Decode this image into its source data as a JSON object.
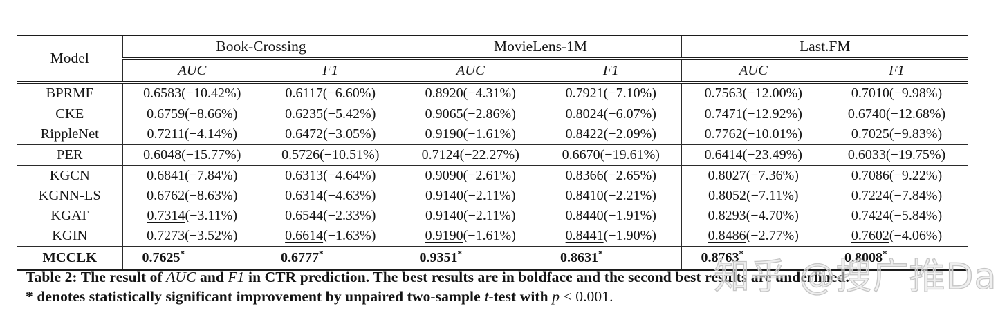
{
  "table": {
    "model_header": "Model",
    "star_symbol": "*",
    "groups": [
      {
        "label": "Book-Crossing",
        "metrics": [
          "AUC",
          "F1"
        ]
      },
      {
        "label": "MovieLens-1M",
        "metrics": [
          "AUC",
          "F1"
        ]
      },
      {
        "label": "Last.FM",
        "metrics": [
          "AUC",
          "F1"
        ]
      }
    ],
    "rows": [
      {
        "model": "BPRMF",
        "rule_below": true,
        "cells": [
          {
            "v": "0.6583",
            "d": "(−10.42%)"
          },
          {
            "v": "0.6117",
            "d": "(−6.60%)"
          },
          {
            "v": "0.8920",
            "d": "(−4.31%)"
          },
          {
            "v": "0.7921",
            "d": "(−7.10%)"
          },
          {
            "v": "0.7563",
            "d": "(−12.00%)"
          },
          {
            "v": "0.7010",
            "d": "(−9.98%)"
          }
        ]
      },
      {
        "model": "CKE",
        "rule_below": false,
        "cells": [
          {
            "v": "0.6759",
            "d": "(−8.66%)"
          },
          {
            "v": "0.6235",
            "d": "(−5.42%)"
          },
          {
            "v": "0.9065",
            "d": "(−2.86%)"
          },
          {
            "v": "0.8024",
            "d": "(−6.07%)"
          },
          {
            "v": "0.7471",
            "d": "(−12.92%)"
          },
          {
            "v": "0.6740",
            "d": "(−12.68%)"
          }
        ]
      },
      {
        "model": "RippleNet",
        "rule_below": true,
        "cells": [
          {
            "v": "0.7211",
            "d": "(−4.14%)"
          },
          {
            "v": "0.6472",
            "d": "(−3.05%)"
          },
          {
            "v": "0.9190",
            "d": "(−1.61%)"
          },
          {
            "v": "0.8422",
            "d": "(−2.09%)"
          },
          {
            "v": "0.7762",
            "d": "(−10.01%)"
          },
          {
            "v": "0.7025",
            "d": "(−9.83%)"
          }
        ]
      },
      {
        "model": "PER",
        "rule_below": true,
        "cells": [
          {
            "v": "0.6048",
            "d": "(−15.77%)"
          },
          {
            "v": "0.5726",
            "d": "(−10.51%)"
          },
          {
            "v": "0.7124",
            "d": "(−22.27%)"
          },
          {
            "v": "0.6670",
            "d": "(−19.61%)"
          },
          {
            "v": "0.6414",
            "d": "(−23.49%)"
          },
          {
            "v": "0.6033",
            "d": "(−19.75%)"
          }
        ]
      },
      {
        "model": "KGCN",
        "rule_below": false,
        "cells": [
          {
            "v": "0.6841",
            "d": "(−7.84%)"
          },
          {
            "v": "0.6313",
            "d": "(−4.64%)"
          },
          {
            "v": "0.9090",
            "d": "(−2.61%)"
          },
          {
            "v": "0.8366",
            "d": "(−2.65%)"
          },
          {
            "v": "0.8027",
            "d": "(−7.36%)"
          },
          {
            "v": "0.7086",
            "d": "(−9.22%)"
          }
        ]
      },
      {
        "model": "KGNN-LS",
        "rule_below": false,
        "cells": [
          {
            "v": "0.6762",
            "d": "(−8.63%)"
          },
          {
            "v": "0.6314",
            "d": "(−4.63%)"
          },
          {
            "v": "0.9140",
            "d": "(−2.11%)"
          },
          {
            "v": "0.8410",
            "d": "(−2.21%)"
          },
          {
            "v": "0.8052",
            "d": "(−7.11%)"
          },
          {
            "v": "0.7224",
            "d": "(−7.84%)"
          }
        ]
      },
      {
        "model": "KGAT",
        "rule_below": false,
        "cells": [
          {
            "v": "0.7314",
            "d": "(−3.11%)",
            "u": true
          },
          {
            "v": "0.6544",
            "d": "(−2.33%)"
          },
          {
            "v": "0.9140",
            "d": "(−2.11%)"
          },
          {
            "v": "0.8440",
            "d": "(−1.91%)"
          },
          {
            "v": "0.8293",
            "d": "(−4.70%)"
          },
          {
            "v": "0.7424",
            "d": "(−5.84%)"
          }
        ]
      },
      {
        "model": "KGIN",
        "rule_below": true,
        "cells": [
          {
            "v": "0.7273",
            "d": "(−3.52%)"
          },
          {
            "v": "0.6614",
            "d": "(−1.63%)",
            "u": true
          },
          {
            "v": "0.9190",
            "d": "(−1.61%)",
            "u": true
          },
          {
            "v": "0.8441",
            "d": "(−1.90%)",
            "u": true
          },
          {
            "v": "0.8486",
            "d": "(−2.77%)",
            "u": true
          },
          {
            "v": "0.7602",
            "d": "(−4.06%)",
            "u": true
          }
        ]
      },
      {
        "model": "MCCLK",
        "bold": true,
        "rule_below": false,
        "cells": [
          {
            "v": "0.7625",
            "star": true
          },
          {
            "v": "0.6777",
            "star": true
          },
          {
            "v": "0.9351",
            "star": true
          },
          {
            "v": "0.8631",
            "star": true
          },
          {
            "v": "0.8763",
            "star": true
          },
          {
            "v": "0.8008",
            "star": true
          }
        ]
      }
    ]
  },
  "caption": {
    "line1": [
      {
        "t": "Table 2: The result of "
      },
      {
        "t": "AUC",
        "i": true,
        "m": true
      },
      {
        "t": " and "
      },
      {
        "t": "F1",
        "i": true,
        "m": true
      },
      {
        "t": " in CTR prediction. The best results are in boldface and the second best results are underlined."
      }
    ],
    "line2": [
      {
        "t": "* denotes statistically significant improvement by unpaired two-sample "
      },
      {
        "t": "t",
        "i": true
      },
      {
        "t": "-test with "
      },
      {
        "t": "p",
        "i": true,
        "m": true
      },
      {
        "t": " < 0.001.",
        "m": true
      }
    ]
  },
  "watermark": "知乎 @搜广推Daily"
}
